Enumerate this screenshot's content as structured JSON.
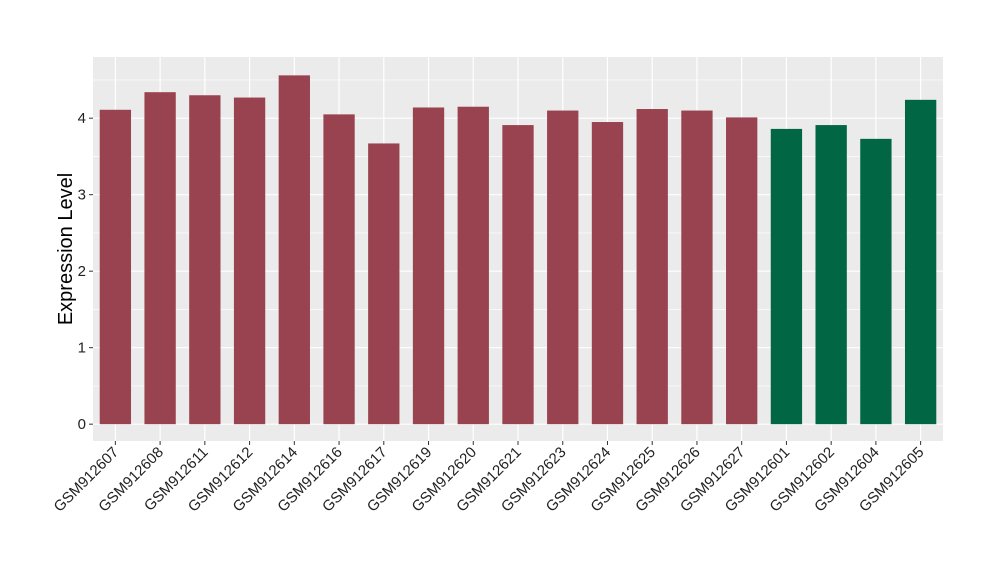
{
  "chart_data": {
    "type": "bar",
    "title": "",
    "xlabel": "",
    "ylabel": "Expression Level",
    "ylim": [
      -0.22,
      4.8
    ],
    "yticks": [
      0,
      1,
      2,
      3,
      4
    ],
    "grid": true,
    "legend": "none",
    "categories": [
      "GSM912607",
      "GSM912608",
      "GSM912611",
      "GSM912612",
      "GSM912614",
      "GSM912616",
      "GSM912617",
      "GSM912619",
      "GSM912620",
      "GSM912621",
      "GSM912623",
      "GSM912624",
      "GSM912625",
      "GSM912626",
      "GSM912627",
      "GSM912601",
      "GSM912602",
      "GSM912604",
      "GSM912605"
    ],
    "values": [
      4.11,
      4.34,
      4.3,
      4.27,
      4.56,
      4.05,
      3.67,
      4.14,
      4.15,
      3.91,
      4.1,
      3.95,
      4.12,
      4.1,
      4.01,
      3.86,
      3.91,
      3.73,
      4.24
    ],
    "group_index": [
      0,
      0,
      0,
      0,
      0,
      0,
      0,
      0,
      0,
      0,
      0,
      0,
      0,
      0,
      0,
      1,
      1,
      1,
      1
    ],
    "group_colors": [
      "#9a4350",
      "#006644"
    ],
    "panel_background": "#ebebeb",
    "grid_color": "#ffffff"
  }
}
